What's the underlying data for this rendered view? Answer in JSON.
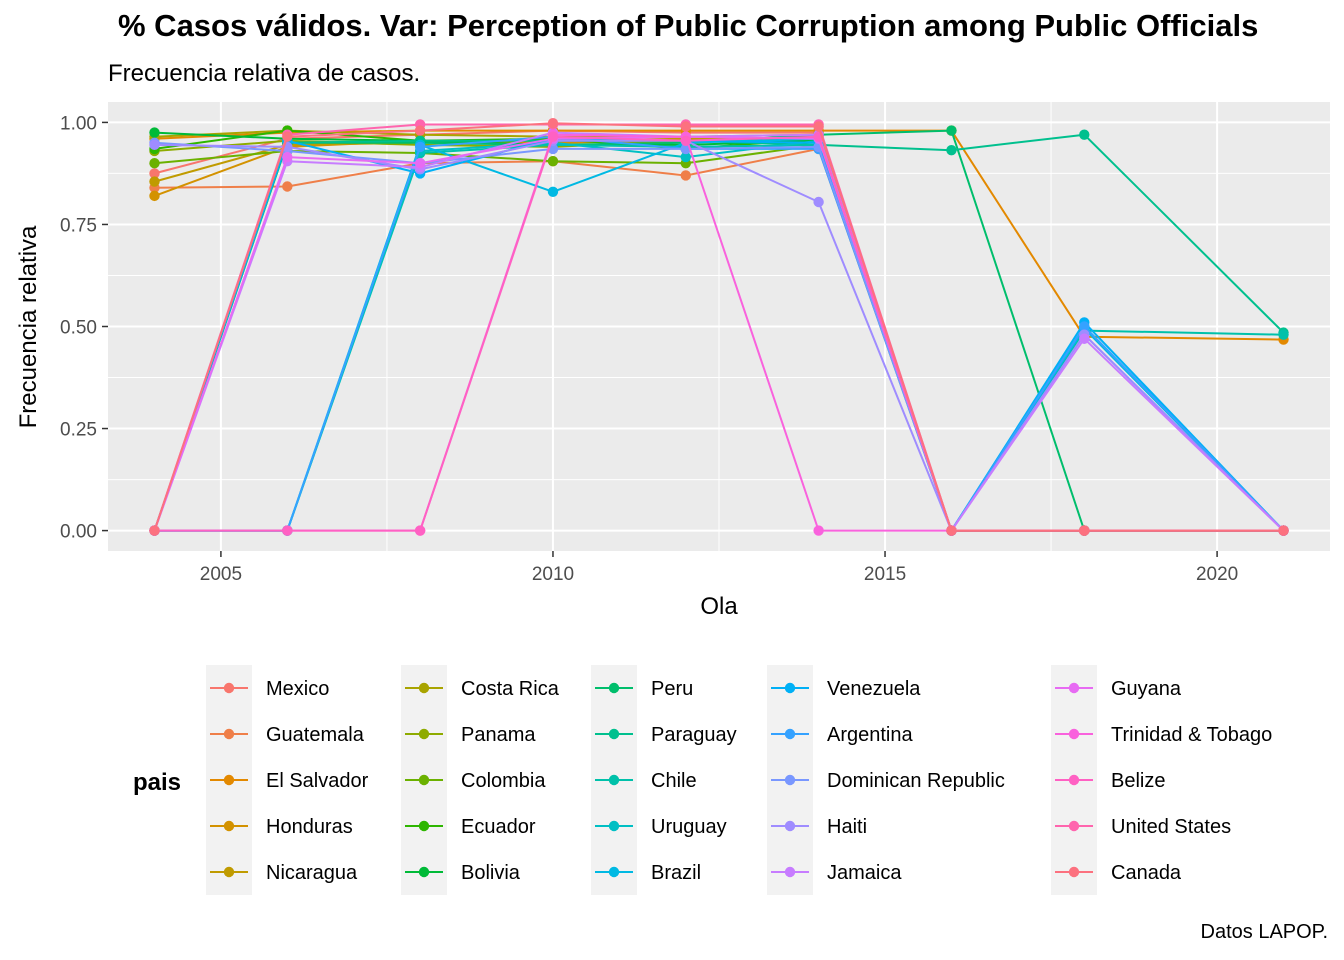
{
  "chart_data": {
    "type": "line",
    "title": "% Casos válidos. Var: Perception of Public Corruption among Public Officials",
    "subtitle": "Frecuencia relativa de casos.",
    "xlabel": "Ola",
    "ylabel": "Frecuencia relativa",
    "caption": "Datos LAPOP.",
    "legend_title": "pais",
    "legend_position": "bottom",
    "grid": true,
    "xlim": [
      2003.3,
      2021.7
    ],
    "ylim": [
      -0.05,
      1.05
    ],
    "x_ticks": [
      2005,
      2010,
      2015,
      2020
    ],
    "x_tick_labels": [
      "2005",
      "2010",
      "2015",
      "2020"
    ],
    "y_ticks": [
      0,
      0.25,
      0.5,
      0.75,
      1
    ],
    "y_tick_labels": [
      "0.00",
      "0.25",
      "0.50",
      "0.75",
      "1.00"
    ],
    "x": [
      2004,
      2006,
      2008,
      2010,
      2012,
      2014,
      2016,
      2018,
      2021
    ],
    "series": [
      {
        "name": "Mexico",
        "color": "#F8766D",
        "values": [
          0.875,
          0.96,
          0.97,
          0.98,
          0.975,
          0.975,
          0.0,
          0.0,
          0.0
        ]
      },
      {
        "name": "Guatemala",
        "color": "#EF7F49",
        "values": [
          0.84,
          0.843,
          0.9,
          0.905,
          0.87,
          0.935,
          0.0,
          0.0,
          0.0
        ]
      },
      {
        "name": "El Salvador",
        "color": "#E38900",
        "values": [
          0.96,
          0.975,
          0.98,
          0.98,
          0.98,
          0.98,
          0.98,
          0.475,
          0.468
        ]
      },
      {
        "name": "Honduras",
        "color": "#D39200",
        "values": [
          0.82,
          0.94,
          0.955,
          0.95,
          0.955,
          0.965,
          0.0,
          0.0,
          0.0
        ]
      },
      {
        "name": "Nicaragua",
        "color": "#C09B00",
        "values": [
          0.855,
          0.945,
          0.95,
          0.955,
          0.96,
          0.96,
          0.0,
          0.0,
          0.0
        ]
      },
      {
        "name": "Costa Rica",
        "color": "#A9A400",
        "values": [
          0.965,
          0.98,
          0.97,
          0.965,
          0.965,
          0.97,
          0.0,
          0.0,
          0.0
        ]
      },
      {
        "name": "Panama",
        "color": "#8EAB00",
        "values": [
          0.93,
          0.955,
          0.945,
          0.94,
          0.955,
          0.96,
          0.0,
          0.0,
          0.0
        ]
      },
      {
        "name": "Colombia",
        "color": "#6BB100",
        "values": [
          0.9,
          0.93,
          0.925,
          0.905,
          0.9,
          0.945,
          0.0,
          0.0,
          0.0
        ]
      },
      {
        "name": "Ecuador",
        "color": "#2EB600",
        "values": [
          0.935,
          0.98,
          0.955,
          0.96,
          0.935,
          0.96,
          0.0,
          0.0,
          0.0
        ]
      },
      {
        "name": "Bolivia",
        "color": "#00BA38",
        "values": [
          0.975,
          0.96,
          0.955,
          0.945,
          0.945,
          0.955,
          0.0,
          0.0,
          0.0
        ]
      },
      {
        "name": "Peru",
        "color": "#00BE6C",
        "values": [
          0.0,
          0.95,
          0.95,
          0.945,
          0.95,
          0.97,
          0.98,
          0.0,
          0.0
        ]
      },
      {
        "name": "Paraguay",
        "color": "#00C08E",
        "values": [
          0.0,
          0.95,
          0.955,
          0.955,
          0.955,
          0.945,
          0.932,
          0.97,
          0.485
        ]
      },
      {
        "name": "Chile",
        "color": "#00C1AA",
        "values": [
          0.0,
          0.0,
          0.925,
          0.945,
          0.94,
          0.945,
          0.0,
          0.49,
          0.48
        ]
      },
      {
        "name": "Uruguay",
        "color": "#00BFC4",
        "values": [
          0.0,
          0.0,
          0.93,
          0.95,
          0.915,
          0.955,
          0.0,
          0.5,
          0.0
        ]
      },
      {
        "name": "Brazil",
        "color": "#00B9E3",
        "values": [
          0.0,
          0.0,
          0.945,
          0.83,
          0.95,
          0.96,
          0.0,
          0.495,
          0.0
        ]
      },
      {
        "name": "Venezuela",
        "color": "#00B0F6",
        "values": [
          0.0,
          0.955,
          0.875,
          0.96,
          0.955,
          0.95,
          0.0,
          0.51,
          0.0
        ]
      },
      {
        "name": "Argentina",
        "color": "#35A2FF",
        "values": [
          0.0,
          0.0,
          0.94,
          0.965,
          0.935,
          0.935,
          0.0,
          0.5,
          0.0
        ]
      },
      {
        "name": "Dominican Republic",
        "color": "#7997FF",
        "values": [
          0.95,
          0.93,
          0.9,
          0.935,
          0.935,
          0.94,
          0.0,
          0.48,
          0.0
        ]
      },
      {
        "name": "Haiti",
        "color": "#9F8CFF",
        "values": [
          0.945,
          0.94,
          0.885,
          0.955,
          0.955,
          0.805,
          0.0,
          0.48,
          0.0
        ]
      },
      {
        "name": "Jamaica",
        "color": "#C77CFF",
        "values": [
          0.0,
          0.905,
          0.89,
          0.975,
          0.965,
          0.97,
          0.0,
          0.47,
          0.0
        ]
      },
      {
        "name": "Guyana",
        "color": "#E76BF3",
        "values": [
          0.0,
          0.915,
          0.9,
          0.96,
          0.965,
          0.96,
          0.0,
          0.0,
          0.0
        ]
      },
      {
        "name": "Trinidad & Tobago",
        "color": "#F962DD",
        "values": [
          0.0,
          0.0,
          0.0,
          0.97,
          0.965,
          0.0,
          0.0,
          0.0,
          0.0
        ]
      },
      {
        "name": "Belize",
        "color": "#FF61C3",
        "values": [
          0.0,
          0.0,
          0.0,
          0.965,
          0.955,
          0.965,
          0.0,
          0.0,
          0.0
        ]
      },
      {
        "name": "United States",
        "color": "#FF65AE",
        "values": [
          0.0,
          0.97,
          0.995,
          0.995,
          0.995,
          0.995,
          0.0,
          0.0,
          0.0
        ]
      },
      {
        "name": "Canada",
        "color": "#FC717F",
        "values": [
          0.0,
          0.965,
          0.98,
          0.998,
          0.99,
          0.99,
          0.0,
          0.0,
          0.0
        ]
      }
    ]
  }
}
